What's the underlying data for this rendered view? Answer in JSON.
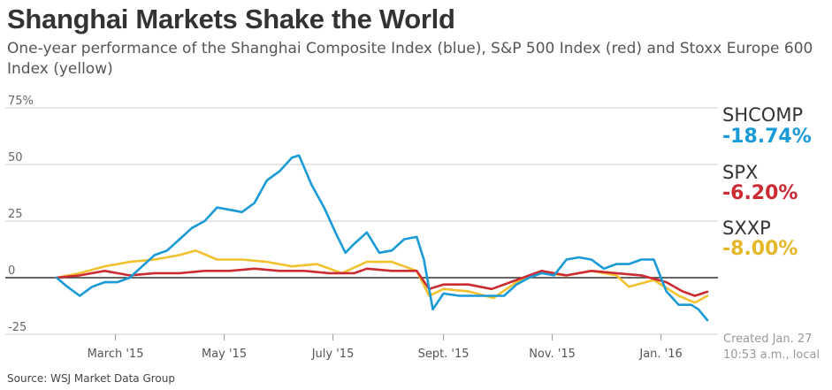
{
  "chart_data": {
    "type": "line",
    "title": "Shanghai Markets Shake the World",
    "subtitle": "One-year performance of the Shanghai Composite Index (blue), S&P 500 Index (red) and Stoxx Europe 600 Index (yellow)",
    "x_range": [
      "2015-01-27",
      "2016-01-27"
    ],
    "ylim": [
      -25,
      75
    ],
    "y_ticks": [
      {
        "value": 75,
        "label": "75%"
      },
      {
        "value": 50,
        "label": "50"
      },
      {
        "value": 25,
        "label": "25"
      },
      {
        "value": 0,
        "label": "0"
      },
      {
        "value": -25,
        "label": "-25"
      }
    ],
    "x_ticks": [
      {
        "date": "2015-03-01",
        "label": "March '15"
      },
      {
        "date": "2015-05-01",
        "label": "May '15"
      },
      {
        "date": "2015-07-01",
        "label": "July '15"
      },
      {
        "date": "2015-09-01",
        "label": "Sept. '15"
      },
      {
        "date": "2015-11-01",
        "label": "Nov. '15"
      },
      {
        "date": "2016-01-01",
        "label": "Jan. '16"
      }
    ],
    "series": [
      {
        "name": "SHCOMP",
        "color": "#1a9ad6",
        "change_label": "-18.74%",
        "points": [
          [
            "2015-01-27",
            0
          ],
          [
            "2015-02-02",
            -4
          ],
          [
            "2015-02-09",
            -8
          ],
          [
            "2015-02-16",
            -4
          ],
          [
            "2015-02-23",
            -2
          ],
          [
            "2015-03-02",
            -2
          ],
          [
            "2015-03-09",
            0
          ],
          [
            "2015-03-16",
            5
          ],
          [
            "2015-03-23",
            10
          ],
          [
            "2015-03-30",
            12
          ],
          [
            "2015-04-06",
            17
          ],
          [
            "2015-04-13",
            22
          ],
          [
            "2015-04-20",
            25
          ],
          [
            "2015-04-27",
            31
          ],
          [
            "2015-05-04",
            30
          ],
          [
            "2015-05-11",
            29
          ],
          [
            "2015-05-18",
            33
          ],
          [
            "2015-05-25",
            43
          ],
          [
            "2015-06-01",
            47
          ],
          [
            "2015-06-08",
            53
          ],
          [
            "2015-06-12",
            54
          ],
          [
            "2015-06-19",
            41
          ],
          [
            "2015-06-26",
            31
          ],
          [
            "2015-07-03",
            19
          ],
          [
            "2015-07-08",
            11
          ],
          [
            "2015-07-13",
            15
          ],
          [
            "2015-07-20",
            20
          ],
          [
            "2015-07-27",
            11
          ],
          [
            "2015-08-03",
            12
          ],
          [
            "2015-08-10",
            17
          ],
          [
            "2015-08-17",
            18
          ],
          [
            "2015-08-21",
            8
          ],
          [
            "2015-08-26",
            -14
          ],
          [
            "2015-09-01",
            -7
          ],
          [
            "2015-09-10",
            -8
          ],
          [
            "2015-09-17",
            -8
          ],
          [
            "2015-09-24",
            -8
          ],
          [
            "2015-10-05",
            -8
          ],
          [
            "2015-10-12",
            -3
          ],
          [
            "2015-10-19",
            0
          ],
          [
            "2015-10-26",
            2
          ],
          [
            "2015-11-02",
            1
          ],
          [
            "2015-11-09",
            8
          ],
          [
            "2015-11-16",
            9
          ],
          [
            "2015-11-23",
            8
          ],
          [
            "2015-11-30",
            4
          ],
          [
            "2015-12-07",
            6
          ],
          [
            "2015-12-14",
            6
          ],
          [
            "2015-12-21",
            8
          ],
          [
            "2015-12-28",
            8
          ],
          [
            "2016-01-04",
            -6
          ],
          [
            "2016-01-11",
            -12
          ],
          [
            "2016-01-18",
            -12
          ],
          [
            "2016-01-22",
            -14
          ],
          [
            "2016-01-27",
            -18.74
          ]
        ]
      },
      {
        "name": "SPX",
        "color": "#cc2b33",
        "change_label": "-6.20%",
        "points": [
          [
            "2015-01-27",
            0
          ],
          [
            "2015-02-09",
            1
          ],
          [
            "2015-02-23",
            3
          ],
          [
            "2015-03-09",
            1
          ],
          [
            "2015-03-23",
            2
          ],
          [
            "2015-04-06",
            2
          ],
          [
            "2015-04-20",
            3
          ],
          [
            "2015-05-04",
            3
          ],
          [
            "2015-05-18",
            4
          ],
          [
            "2015-06-01",
            3
          ],
          [
            "2015-06-15",
            3
          ],
          [
            "2015-06-29",
            2
          ],
          [
            "2015-07-13",
            2
          ],
          [
            "2015-07-20",
            4
          ],
          [
            "2015-08-03",
            3
          ],
          [
            "2015-08-17",
            3
          ],
          [
            "2015-08-24",
            -5
          ],
          [
            "2015-09-01",
            -3
          ],
          [
            "2015-09-15",
            -3
          ],
          [
            "2015-09-28",
            -5
          ],
          [
            "2015-10-12",
            -1
          ],
          [
            "2015-10-26",
            3
          ],
          [
            "2015-11-09",
            1
          ],
          [
            "2015-11-23",
            3
          ],
          [
            "2015-12-07",
            2
          ],
          [
            "2015-12-21",
            1
          ],
          [
            "2016-01-04",
            -2
          ],
          [
            "2016-01-13",
            -6
          ],
          [
            "2016-01-20",
            -8
          ],
          [
            "2016-01-27",
            -6.2
          ]
        ]
      },
      {
        "name": "SXXP",
        "color": "#f2c12e",
        "change_label": "-8.00%",
        "points": [
          [
            "2015-01-27",
            0
          ],
          [
            "2015-02-09",
            2
          ],
          [
            "2015-02-23",
            5
          ],
          [
            "2015-03-09",
            7
          ],
          [
            "2015-03-23",
            8
          ],
          [
            "2015-04-06",
            10
          ],
          [
            "2015-04-15",
            12
          ],
          [
            "2015-04-27",
            8
          ],
          [
            "2015-05-11",
            8
          ],
          [
            "2015-05-25",
            7
          ],
          [
            "2015-06-08",
            5
          ],
          [
            "2015-06-22",
            6
          ],
          [
            "2015-07-06",
            2
          ],
          [
            "2015-07-20",
            7
          ],
          [
            "2015-08-03",
            7
          ],
          [
            "2015-08-17",
            3
          ],
          [
            "2015-08-24",
            -8
          ],
          [
            "2015-09-01",
            -5
          ],
          [
            "2015-09-15",
            -6
          ],
          [
            "2015-09-29",
            -9
          ],
          [
            "2015-10-12",
            -2
          ],
          [
            "2015-10-26",
            2
          ],
          [
            "2015-11-09",
            1
          ],
          [
            "2015-11-23",
            3
          ],
          [
            "2015-12-07",
            1
          ],
          [
            "2015-12-14",
            -4
          ],
          [
            "2015-12-28",
            -1
          ],
          [
            "2016-01-11",
            -8
          ],
          [
            "2016-01-20",
            -11
          ],
          [
            "2016-01-27",
            -8
          ]
        ]
      }
    ]
  },
  "legend": [
    {
      "code": "SHCOMP",
      "value": "-18.74%",
      "color": "#1a9ad6"
    },
    {
      "code": "SPX",
      "value": "-6.20%",
      "color": "#cc2b33"
    },
    {
      "code": "SXXP",
      "value": "-8.00%",
      "color": "#e5b82a"
    }
  ],
  "footer": {
    "created_line1": "Created Jan. 27",
    "created_line2": "10:53 a.m., local",
    "source": "Source: WSJ Market Data Group"
  }
}
